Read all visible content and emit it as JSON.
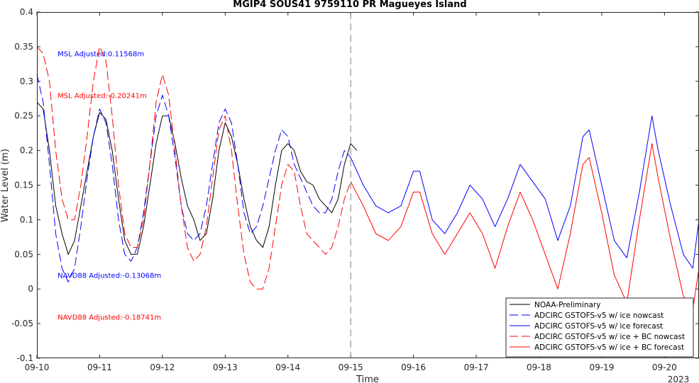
{
  "chart_data": {
    "type": "line",
    "title": "MGIP4 SOUS41 9759110 PR Magueyes Island",
    "xlabel": "Time",
    "ylabel": "Water Level (m)",
    "x_tick_labels": [
      "09-10",
      "09-11",
      "09-12",
      "09-13",
      "09-14",
      "09-15",
      "09-16",
      "09-17",
      "09-18",
      "09-19",
      "09-20"
    ],
    "x_year_label": "2023",
    "xlim": [
      0,
      10.55
    ],
    "y_ticks": [
      -0.1,
      -0.05,
      0,
      0.05,
      0.1,
      0.15,
      0.2,
      0.25,
      0.3,
      0.35,
      0.4
    ],
    "y_tick_labels": [
      "-0.1",
      "-0.05",
      "0",
      "0.05",
      "0.1",
      "0.15",
      "0.2",
      "0.25",
      "0.3",
      "0.35",
      "0.4"
    ],
    "ylim": [
      -0.1,
      0.4
    ],
    "grid": false,
    "legend_position": "bottom-right",
    "nowcast_forecast_split_x": 5,
    "annotations": [
      {
        "text": "MSL Adjusted:0.11568m",
        "x": 0.33,
        "y": 0.34,
        "color": "#0000ff"
      },
      {
        "text": "MSL Adjusted:-0.20241m",
        "x": 0.33,
        "y": 0.28,
        "color": "#ff0000"
      },
      {
        "text": "NAVD88 Adjusted:-0.13068m",
        "x": 0.33,
        "y": 0.02,
        "color": "#0000ff"
      },
      {
        "text": "NAVD88 Adjusted:-0.18741m",
        "x": 0.33,
        "y": -0.04,
        "color": "#ff0000"
      }
    ],
    "series": [
      {
        "name": "NOAA-Preliminary",
        "color": "#000000",
        "dash": "solid",
        "points": [
          [
            0,
            0.27
          ],
          [
            0.1,
            0.26
          ],
          [
            0.2,
            0.2
          ],
          [
            0.3,
            0.12
          ],
          [
            0.4,
            0.08
          ],
          [
            0.5,
            0.05
          ],
          [
            0.6,
            0.07
          ],
          [
            0.7,
            0.12
          ],
          [
            0.8,
            0.17
          ],
          [
            0.9,
            0.22
          ],
          [
            1.0,
            0.255
          ],
          [
            1.1,
            0.245
          ],
          [
            1.2,
            0.2
          ],
          [
            1.3,
            0.13
          ],
          [
            1.4,
            0.07
          ],
          [
            1.5,
            0.05
          ],
          [
            1.6,
            0.05
          ],
          [
            1.7,
            0.09
          ],
          [
            1.8,
            0.15
          ],
          [
            1.9,
            0.21
          ],
          [
            2.0,
            0.25
          ],
          [
            2.1,
            0.25
          ],
          [
            2.2,
            0.21
          ],
          [
            2.3,
            0.16
          ],
          [
            2.4,
            0.12
          ],
          [
            2.5,
            0.1
          ],
          [
            2.6,
            0.07
          ],
          [
            2.7,
            0.08
          ],
          [
            2.8,
            0.13
          ],
          [
            2.9,
            0.2
          ],
          [
            3.0,
            0.24
          ],
          [
            3.1,
            0.22
          ],
          [
            3.2,
            0.18
          ],
          [
            3.3,
            0.13
          ],
          [
            3.4,
            0.09
          ],
          [
            3.5,
            0.07
          ],
          [
            3.6,
            0.06
          ],
          [
            3.7,
            0.09
          ],
          [
            3.8,
            0.15
          ],
          [
            3.9,
            0.2
          ],
          [
            4.0,
            0.21
          ],
          [
            4.1,
            0.2
          ],
          [
            4.2,
            0.17
          ],
          [
            4.3,
            0.155
          ],
          [
            4.4,
            0.15
          ],
          [
            4.5,
            0.13
          ],
          [
            4.6,
            0.12
          ],
          [
            4.7,
            0.11
          ],
          [
            4.8,
            0.13
          ],
          [
            4.9,
            0.18
          ],
          [
            5.0,
            0.21
          ],
          [
            5.1,
            0.2
          ]
        ]
      },
      {
        "name": "ADCIRC GSTOFS-v5 w/ ice nowcast",
        "color": "#0000ff",
        "dash": "long-dash",
        "points": [
          [
            0,
            0.31
          ],
          [
            0.1,
            0.27
          ],
          [
            0.2,
            0.18
          ],
          [
            0.3,
            0.08
          ],
          [
            0.4,
            0.03
          ],
          [
            0.5,
            0.01
          ],
          [
            0.6,
            0.03
          ],
          [
            0.7,
            0.09
          ],
          [
            0.8,
            0.16
          ],
          [
            0.9,
            0.22
          ],
          [
            1.0,
            0.26
          ],
          [
            1.1,
            0.24
          ],
          [
            1.2,
            0.18
          ],
          [
            1.3,
            0.1
          ],
          [
            1.4,
            0.05
          ],
          [
            1.5,
            0.04
          ],
          [
            1.6,
            0.06
          ],
          [
            1.7,
            0.11
          ],
          [
            1.8,
            0.18
          ],
          [
            1.9,
            0.25
          ],
          [
            2.0,
            0.28
          ],
          [
            2.1,
            0.25
          ],
          [
            2.2,
            0.19
          ],
          [
            2.3,
            0.12
          ],
          [
            2.4,
            0.08
          ],
          [
            2.5,
            0.07
          ],
          [
            2.6,
            0.08
          ],
          [
            2.7,
            0.12
          ],
          [
            2.8,
            0.18
          ],
          [
            2.9,
            0.24
          ],
          [
            3.0,
            0.26
          ],
          [
            3.1,
            0.24
          ],
          [
            3.2,
            0.18
          ],
          [
            3.3,
            0.11
          ],
          [
            3.4,
            0.08
          ],
          [
            3.5,
            0.09
          ],
          [
            3.6,
            0.12
          ],
          [
            3.7,
            0.16
          ],
          [
            3.8,
            0.2
          ],
          [
            3.9,
            0.23
          ],
          [
            4.0,
            0.22
          ],
          [
            4.1,
            0.18
          ],
          [
            4.2,
            0.16
          ],
          [
            4.3,
            0.14
          ],
          [
            4.4,
            0.12
          ],
          [
            4.5,
            0.11
          ],
          [
            4.6,
            0.11
          ],
          [
            4.7,
            0.13
          ],
          [
            4.8,
            0.17
          ],
          [
            4.9,
            0.2
          ],
          [
            5.0,
            0.19
          ]
        ]
      },
      {
        "name": "ADCIRC GSTOFS-v5 w/ ice forecast",
        "color": "#0000ff",
        "dash": "solid",
        "points": [
          [
            5.0,
            0.19
          ],
          [
            5.2,
            0.15
          ],
          [
            5.4,
            0.12
          ],
          [
            5.6,
            0.11
          ],
          [
            5.8,
            0.12
          ],
          [
            6.0,
            0.17
          ],
          [
            6.1,
            0.17
          ],
          [
            6.3,
            0.1
          ],
          [
            6.5,
            0.08
          ],
          [
            6.7,
            0.11
          ],
          [
            6.9,
            0.15
          ],
          [
            7.1,
            0.13
          ],
          [
            7.3,
            0.09
          ],
          [
            7.5,
            0.13
          ],
          [
            7.7,
            0.18
          ],
          [
            7.9,
            0.155
          ],
          [
            8.1,
            0.13
          ],
          [
            8.3,
            0.07
          ],
          [
            8.5,
            0.12
          ],
          [
            8.7,
            0.22
          ],
          [
            8.8,
            0.23
          ],
          [
            9.0,
            0.15
          ],
          [
            9.2,
            0.07
          ],
          [
            9.4,
            0.045
          ],
          [
            9.6,
            0.14
          ],
          [
            9.8,
            0.25
          ],
          [
            9.9,
            0.2
          ],
          [
            10.1,
            0.12
          ],
          [
            10.3,
            0.05
          ],
          [
            10.45,
            0.03
          ],
          [
            10.55,
            0.1
          ]
        ]
      },
      {
        "name": "ADCIRC GSTOFS-v5 w/ ice + BC nowcast",
        "color": "#ff0000",
        "dash": "long-dash",
        "points": [
          [
            0,
            0.35
          ],
          [
            0.1,
            0.34
          ],
          [
            0.2,
            0.3
          ],
          [
            0.3,
            0.2
          ],
          [
            0.4,
            0.13
          ],
          [
            0.5,
            0.1
          ],
          [
            0.6,
            0.1
          ],
          [
            0.7,
            0.15
          ],
          [
            0.8,
            0.22
          ],
          [
            0.9,
            0.3
          ],
          [
            1.0,
            0.35
          ],
          [
            1.1,
            0.33
          ],
          [
            1.2,
            0.25
          ],
          [
            1.3,
            0.15
          ],
          [
            1.4,
            0.08
          ],
          [
            1.5,
            0.06
          ],
          [
            1.6,
            0.06
          ],
          [
            1.7,
            0.1
          ],
          [
            1.8,
            0.18
          ],
          [
            1.9,
            0.27
          ],
          [
            2.0,
            0.31
          ],
          [
            2.1,
            0.28
          ],
          [
            2.2,
            0.2
          ],
          [
            2.3,
            0.12
          ],
          [
            2.4,
            0.06
          ],
          [
            2.5,
            0.04
          ],
          [
            2.6,
            0.05
          ],
          [
            2.7,
            0.09
          ],
          [
            2.8,
            0.16
          ],
          [
            2.9,
            0.23
          ],
          [
            3.0,
            0.25
          ],
          [
            3.1,
            0.2
          ],
          [
            3.2,
            0.12
          ],
          [
            3.3,
            0.05
          ],
          [
            3.4,
            0.01
          ],
          [
            3.5,
            0.0
          ],
          [
            3.6,
            0.0
          ],
          [
            3.7,
            0.03
          ],
          [
            3.8,
            0.09
          ],
          [
            3.9,
            0.15
          ],
          [
            4.0,
            0.18
          ],
          [
            4.1,
            0.17
          ],
          [
            4.2,
            0.12
          ],
          [
            4.3,
            0.08
          ],
          [
            4.4,
            0.07
          ],
          [
            4.5,
            0.06
          ],
          [
            4.6,
            0.05
          ],
          [
            4.7,
            0.06
          ],
          [
            4.8,
            0.09
          ],
          [
            4.9,
            0.13
          ],
          [
            5.0,
            0.155
          ]
        ]
      },
      {
        "name": "ADCIRC GSTOFS-v5 w/ ice + BC forecast",
        "color": "#ff0000",
        "dash": "solid",
        "points": [
          [
            5.0,
            0.155
          ],
          [
            5.2,
            0.12
          ],
          [
            5.4,
            0.08
          ],
          [
            5.6,
            0.07
          ],
          [
            5.8,
            0.09
          ],
          [
            6.0,
            0.14
          ],
          [
            6.1,
            0.14
          ],
          [
            6.3,
            0.08
          ],
          [
            6.5,
            0.05
          ],
          [
            6.7,
            0.08
          ],
          [
            6.9,
            0.11
          ],
          [
            7.1,
            0.08
          ],
          [
            7.3,
            0.03
          ],
          [
            7.5,
            0.09
          ],
          [
            7.7,
            0.14
          ],
          [
            7.9,
            0.1
          ],
          [
            8.1,
            0.05
          ],
          [
            8.3,
            0.0
          ],
          [
            8.5,
            0.08
          ],
          [
            8.7,
            0.18
          ],
          [
            8.8,
            0.19
          ],
          [
            9.0,
            0.11
          ],
          [
            9.2,
            0.02
          ],
          [
            9.4,
            -0.02
          ],
          [
            9.6,
            0.1
          ],
          [
            9.8,
            0.21
          ],
          [
            9.9,
            0.16
          ],
          [
            10.1,
            0.07
          ],
          [
            10.3,
            -0.01
          ],
          [
            10.45,
            -0.03
          ],
          [
            10.55,
            0.03
          ]
        ]
      }
    ]
  }
}
